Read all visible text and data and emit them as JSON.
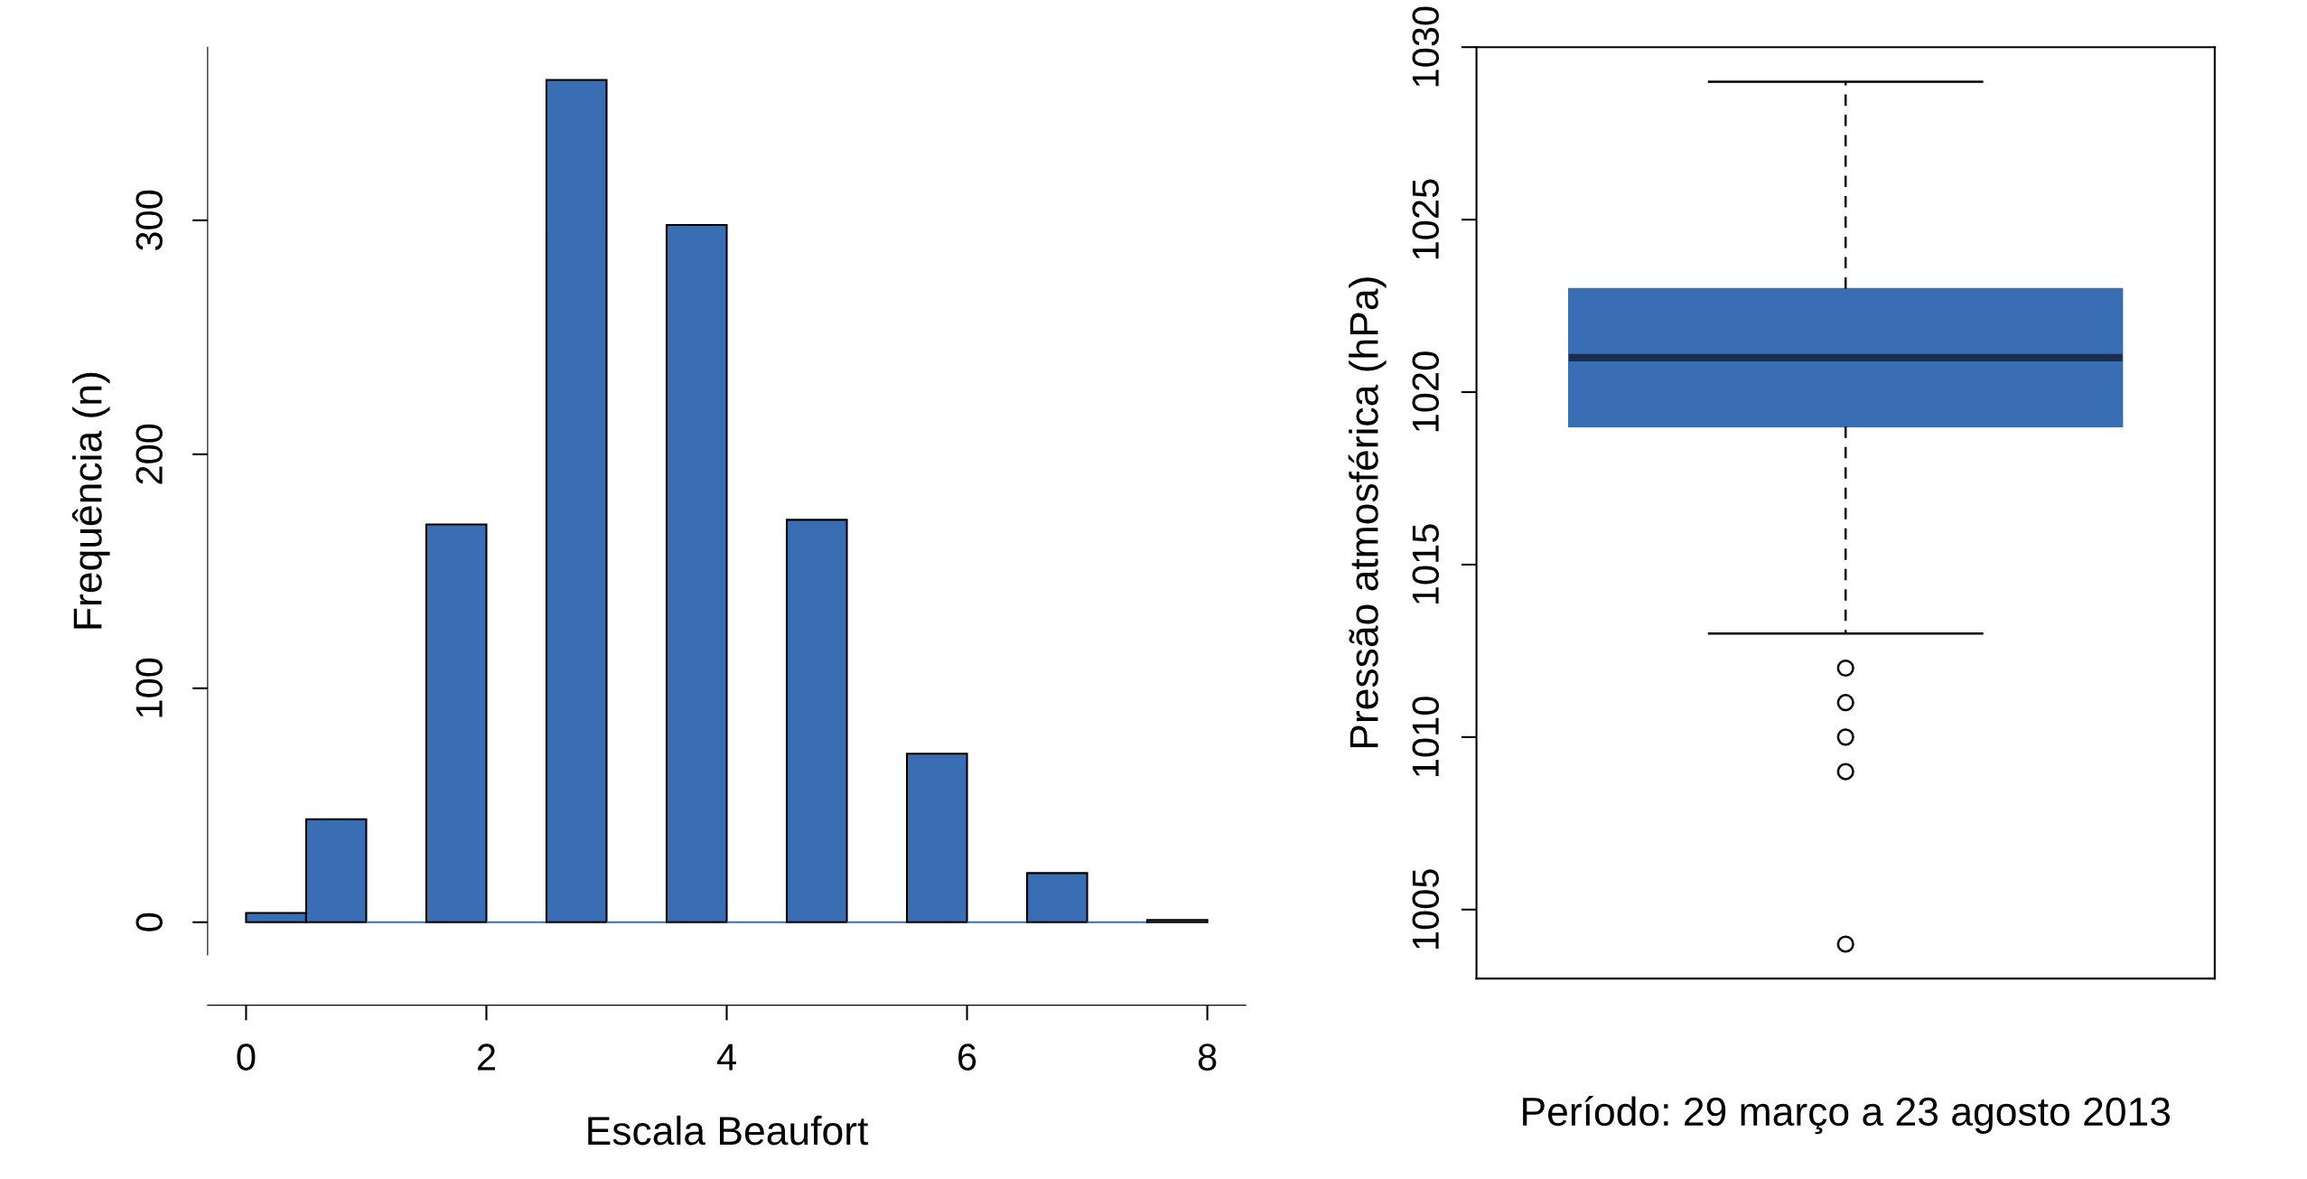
{
  "chart_data": [
    {
      "type": "histogram",
      "xlabel": "Escala Beaufort",
      "ylabel": "Frequência (n)",
      "color": "#3a6eb4",
      "bins": [
        0,
        0.5,
        1,
        1.5,
        2,
        2.5,
        3,
        3.5,
        4,
        4.5,
        5,
        5.5,
        6,
        6.5,
        7,
        7.5,
        8
      ],
      "values": [
        4,
        44,
        0,
        170,
        0,
        360,
        0,
        298,
        0,
        172,
        0,
        72,
        0,
        21,
        0,
        1
      ],
      "xlim": [
        -0.32,
        8.32
      ],
      "xticks": [
        0,
        2,
        4,
        6,
        8
      ],
      "ylim": [
        -14,
        374
      ],
      "yticks": [
        0,
        100,
        200,
        300
      ],
      "grid": false
    },
    {
      "type": "box",
      "xlabel": "Período: 29 março a 23 agosto 2013",
      "ylabel": "Pressão atmosférica (hPa)",
      "color": "#3a6eb4",
      "categories": [
        null
      ],
      "boxes": [
        {
          "low": 1013,
          "q1": 1019,
          "median": 1021,
          "q3": 1023,
          "high": 1029,
          "outliers": [
            1012,
            1011,
            1010,
            1009,
            1004
          ]
        }
      ],
      "ylim": [
        1003,
        1030
      ],
      "yticks": [
        1005,
        1010,
        1015,
        1020,
        1025,
        1030
      ],
      "grid": false
    }
  ]
}
